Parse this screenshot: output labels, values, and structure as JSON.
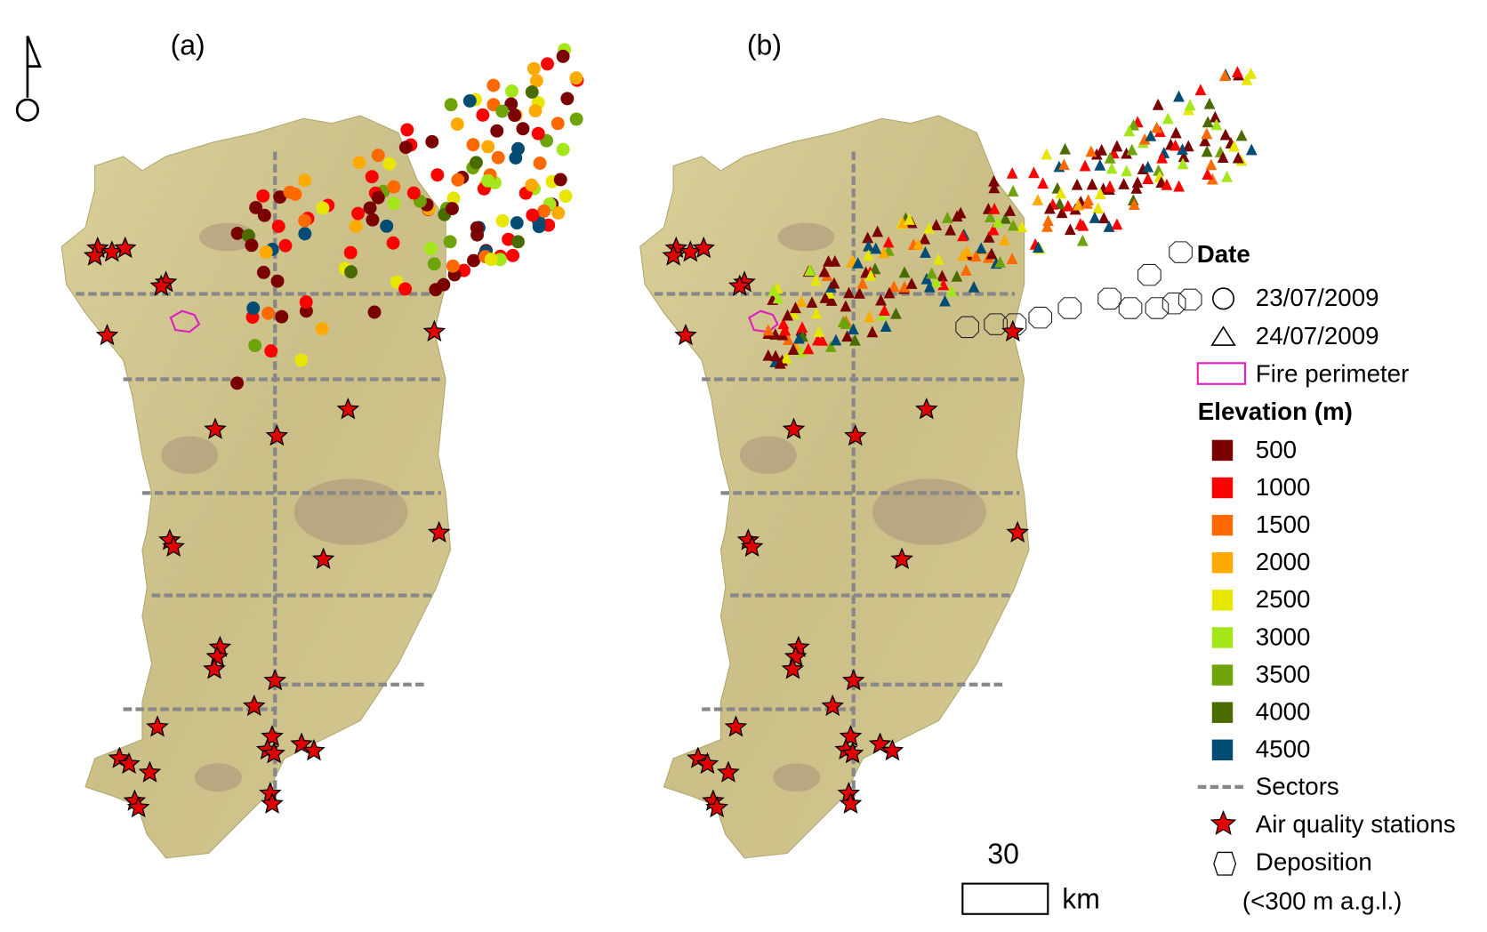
{
  "panels": [
    "(a)",
    "(b)"
  ],
  "legend": {
    "date_title": "Date",
    "dates": [
      "23/07/2009",
      "24/07/2009"
    ],
    "fire_perimeter": "Fire perimeter",
    "elevation_title": "Elevation (m)",
    "elevation_classes": [
      {
        "label": 500,
        "color": "#7a0000"
      },
      {
        "label": 1000,
        "color": "#ff0000"
      },
      {
        "label": 1500,
        "color": "#ff6a00"
      },
      {
        "label": 2000,
        "color": "#ffaa00"
      },
      {
        "label": 2500,
        "color": "#e6e600"
      },
      {
        "label": 3000,
        "color": "#a3e619"
      },
      {
        "label": 3500,
        "color": "#6ea30a"
      },
      {
        "label": 4000,
        "color": "#4a6b00"
      },
      {
        "label": 4500,
        "color": "#004c73"
      }
    ],
    "sectors": "Sectors",
    "stations": "Air quality stations",
    "deposition": "Deposition",
    "deposition_note": "(<300 m a.g.l.)"
  },
  "scale_bar": {
    "value": 30,
    "unit": "km"
  }
}
